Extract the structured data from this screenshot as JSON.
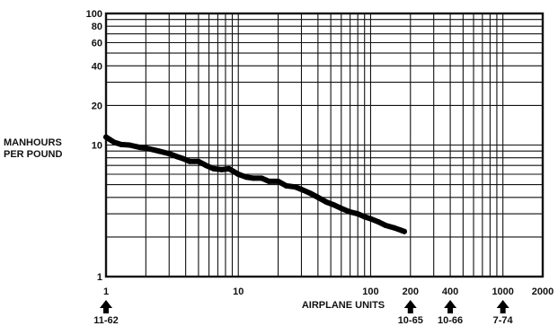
{
  "chart_data": {
    "type": "line",
    "xscale": "log",
    "yscale": "log",
    "xlim": [
      1,
      2000
    ],
    "ylim": [
      1,
      100
    ],
    "grid": true,
    "ylabel": [
      "MANHOURS",
      "PER POUND"
    ],
    "xlabel": "AIRPLANE UNITS",
    "x_ticks": [
      {
        "value": 1,
        "label": "1"
      },
      {
        "value": 10,
        "label": "10"
      },
      {
        "value": 100,
        "label": "100"
      },
      {
        "value": 200,
        "label": "200"
      },
      {
        "value": 400,
        "label": "400"
      },
      {
        "value": 1000,
        "label": "1000"
      },
      {
        "value": 2000,
        "label": "2000"
      }
    ],
    "y_ticks": [
      {
        "value": 1,
        "label": "1"
      },
      {
        "value": 10,
        "label": "10"
      },
      {
        "value": 20,
        "label": "20"
      },
      {
        "value": 40,
        "label": "40"
      },
      {
        "value": 60,
        "label": "60"
      },
      {
        "value": 80,
        "label": "80"
      },
      {
        "value": 100,
        "label": "100"
      }
    ],
    "milestones": [
      {
        "x": 1,
        "label": "11-62"
      },
      {
        "x": 200,
        "label": "10-65"
      },
      {
        "x": 400,
        "label": "10-66"
      },
      {
        "x": 1000,
        "label": "7-74"
      }
    ],
    "series": [
      {
        "x": [
          1,
          1.15,
          1.3,
          1.5,
          1.8,
          2,
          2.5,
          3,
          3.4,
          3.8,
          4.3,
          5,
          5.7,
          6.5,
          7.5,
          8.5,
          10,
          11.5,
          13,
          15,
          17,
          20,
          23,
          27,
          30,
          35,
          40,
          46,
          53,
          60,
          70,
          80,
          90,
          100,
          115,
          130,
          150,
          170,
          180
        ],
        "y": [
          11.5,
          10.5,
          10.1,
          10.0,
          9.6,
          9.5,
          9.0,
          8.6,
          8.2,
          7.9,
          7.5,
          7.5,
          7.0,
          6.6,
          6.5,
          6.6,
          6.0,
          5.7,
          5.6,
          5.6,
          5.3,
          5.3,
          4.9,
          4.8,
          4.6,
          4.3,
          4.0,
          3.7,
          3.5,
          3.3,
          3.1,
          3.0,
          2.85,
          2.75,
          2.6,
          2.45,
          2.35,
          2.25,
          2.2
        ]
      }
    ]
  }
}
